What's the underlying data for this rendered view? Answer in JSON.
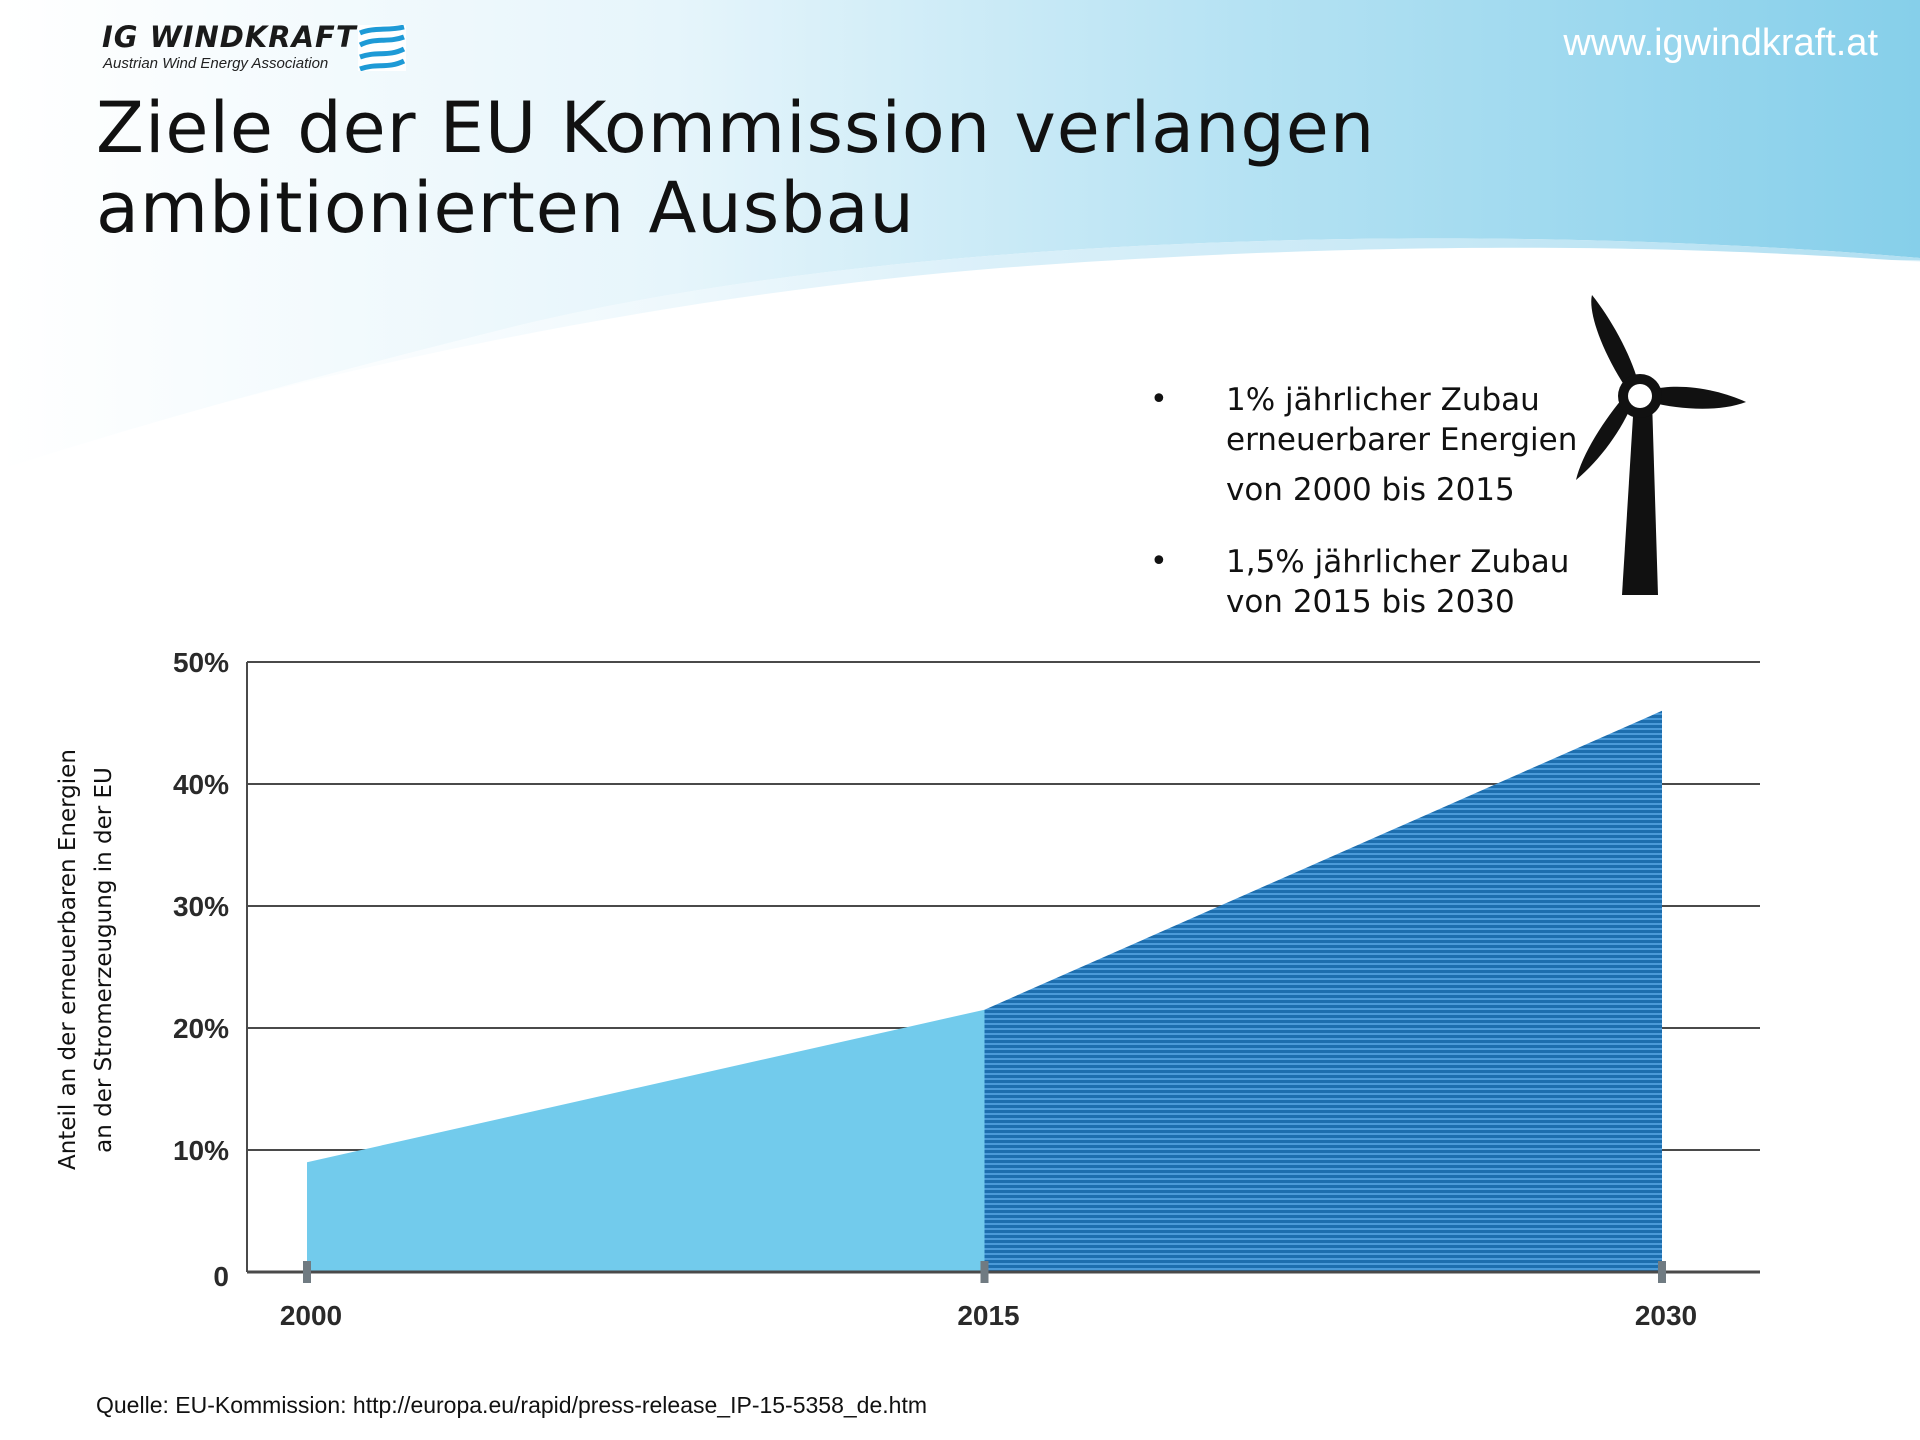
{
  "header": {
    "logo_title": "IG WINDKRAFT",
    "logo_subtitle": "Austrian Wind Energy Association",
    "url": "www.igwindkraft.at",
    "title_lines": [
      "Ziele der EU Kommission verlangen",
      "ambitionierten Ausbau"
    ]
  },
  "bullets": [
    {
      "marker": "•",
      "lines": [
        "1% jährlicher Zubau",
        "erneuerbarer Energien",
        "von 2000 bis 2015"
      ]
    },
    {
      "marker": "•",
      "lines": [
        "1,5% jährlicher Zubau",
        "von 2015 bis 2030"
      ]
    }
  ],
  "chart_data": {
    "type": "area",
    "title": "",
    "ylabel_lines": [
      "Anteil an der erneuerbaren Energien",
      "an der Stromerzeugung in der EU"
    ],
    "xlabel": "",
    "x": [
      2000,
      2015,
      2030
    ],
    "x_tick_labels": [
      "2000",
      "2015",
      "2030"
    ],
    "y_ticks": [
      0,
      10,
      20,
      30,
      40,
      50
    ],
    "y_tick_labels": [
      "0",
      "10%",
      "20%",
      "30%",
      "40%",
      "50%"
    ],
    "ylim": [
      0,
      50
    ],
    "xlim": [
      1998.6,
      2032.1
    ],
    "grid": true,
    "series": [
      {
        "x": [
          2000,
          2015
        ],
        "values": [
          9,
          21.5
        ],
        "color": "#72cbec",
        "fill": "solid"
      },
      {
        "x": [
          2015,
          2030
        ],
        "values": [
          21.5,
          46
        ],
        "color": "#1f74b6",
        "fill": "striped"
      }
    ]
  },
  "source": "Quelle: EU-Kommission: http://europa.eu/rapid/press-release_IP-15-5358_de.htm",
  "colors": {
    "header_blue": "#8fd3ec",
    "light_area": "#72cbec",
    "dark_area": "#1f74b6",
    "grid": "#4a4a4a"
  }
}
